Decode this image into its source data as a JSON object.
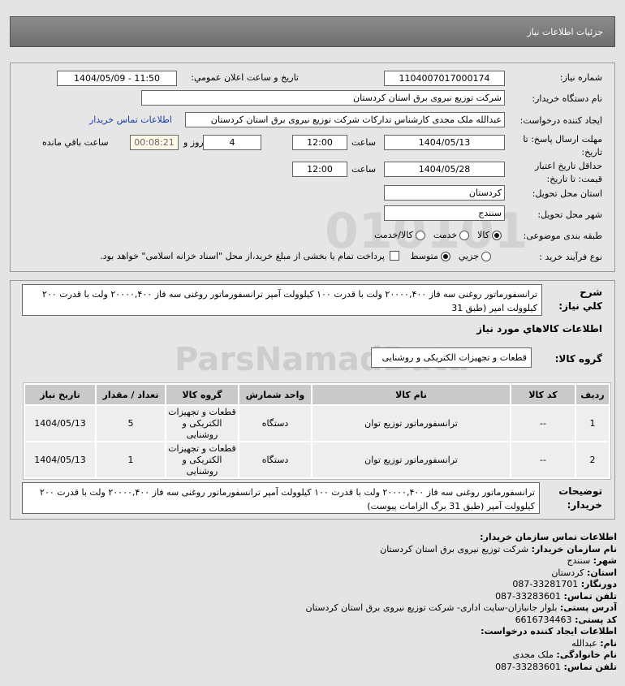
{
  "header": {
    "title": "جزئیات اطلاعات نیاز"
  },
  "form": {
    "need_number_label": "شماره نیاز:",
    "need_number": "1104007017000174",
    "announce_label": "تاریخ و ساعت اعلان عمومي:",
    "announce_value": "1404/05/09 - 11:50",
    "buyer_label": "نام دستگاه خریدار:",
    "buyer_value": "شرکت توزیع نیروی برق استان کردستان",
    "creator_label": "ایجاد کننده درخواست:",
    "creator_value": "عبدالله ملک مجدی کارشناس تدارکات شرکت توزیع نیروی برق استان کردستان",
    "contact_link": "اطلاعات تماس خریدار",
    "deadline_label": "مهلت ارسال پاسخ: تا تاریخ:",
    "deadline_date": "1404/05/13",
    "time_label": "ساعت",
    "deadline_time": "12:00",
    "days": "4",
    "days_label": "روز و",
    "remaining": "00:08:21",
    "remaining_label": "ساعت باقي مانده",
    "validity_label": "حداقل تاریخ اعتبار قیمت: تا تاریخ:",
    "validity_date": "1404/05/28",
    "validity_time": "12:00",
    "province_label": "استان محل تحویل:",
    "province": "کردستان",
    "city_label": "شهر محل تحویل:",
    "city": "سنندج",
    "category_label": "طبقه بندی موضوعی:",
    "category_options": [
      "کالا",
      "خدمت",
      "کالا/خدمت"
    ],
    "category_selected": "کالا",
    "process_label": "نوع فرآیند خرید :",
    "process_options": [
      "جزیي",
      "متوسط"
    ],
    "process_selected": "متوسط",
    "payment_note": "پرداخت تمام یا بخشی از مبلغ خرید،از محل \"اسناد خزانه اسلامی\" خواهد بود."
  },
  "summary": {
    "label": "شرح کلي نیاز:",
    "text": "ترانسفورماتور روغنی سه فاز ۲۰۰۰۰,۴۰۰ ولت با قدرت ۱۰۰ کیلوولت آمپر ترانسفورماتور روغنی سه فاز ۲۰۰۰۰,۴۰۰ ولت با قدرت ۲۰۰ کیلوولت امپر (طبق 31"
  },
  "goods": {
    "title": "اطلاعات کالاهاي مورد نیاز",
    "group_label": "گروه کالا:",
    "group_value": "قطعات و تجهیزات الکتریکی و روشنایی",
    "columns": [
      "ردیف",
      "کد کالا",
      "نام کالا",
      "واحد شمارش",
      "گروه کالا",
      "تعداد / مقدار",
      "تاریخ نیاز"
    ],
    "rows": [
      [
        "1",
        "--",
        "ترانسفورماتور توزیع توان",
        "دستگاه",
        "قطعات و تجهیزات الکتریکی و روشنایی",
        "5",
        "1404/05/13"
      ],
      [
        "2",
        "--",
        "ترانسفورماتور توزیع توان",
        "دستگاه",
        "قطعات و تجهیزات الکتریکی و روشنایی",
        "1",
        "1404/05/13"
      ]
    ]
  },
  "notes": {
    "label": "توضیحات خریدار:",
    "text": "ترانسفورماتور روغنی سه فاز ۲۰۰۰۰,۴۰۰ ولت با قدرت ۱۰۰ کیلوولت آمپر ترانسفورماتور روغنی سه فاز ۲۰۰۰۰,۴۰۰ ولت با قدرت ۲۰۰ کیلوولت آمپر (طبق 31 برگ الزامات پیوست)"
  },
  "contact": {
    "title": "اطلاعات تماس سازمان خریدار:",
    "lines": [
      {
        "k": "نام سازمان خریدار:",
        "v": "شرکت توزیع نیروی برق استان کردستان"
      },
      {
        "k": "شهر:",
        "v": "سنندج"
      },
      {
        "k": "استان:",
        "v": "کردستان"
      },
      {
        "k": "دورنگار:",
        "v": "087-33281701"
      },
      {
        "k": "تلفن تماس:",
        "v": "087-33283601"
      },
      {
        "k": "آدرس پستی:",
        "v": "بلوار جانبازان-سایت اداری- شرکت توزیع نیروی برق استان کردستان"
      },
      {
        "k": "کد پستی:",
        "v": "6616734463"
      }
    ],
    "creator_title": "اطلاعات ایجاد کننده درخواست:",
    "creator_lines": [
      {
        "k": "نام:",
        "v": "عبدالله"
      },
      {
        "k": "نام خانوادگی:",
        "v": "ملک مجدی"
      },
      {
        "k": "تلفن تماس:",
        "v": "087-33283601"
      }
    ]
  },
  "watermark": "ParsNamadData"
}
